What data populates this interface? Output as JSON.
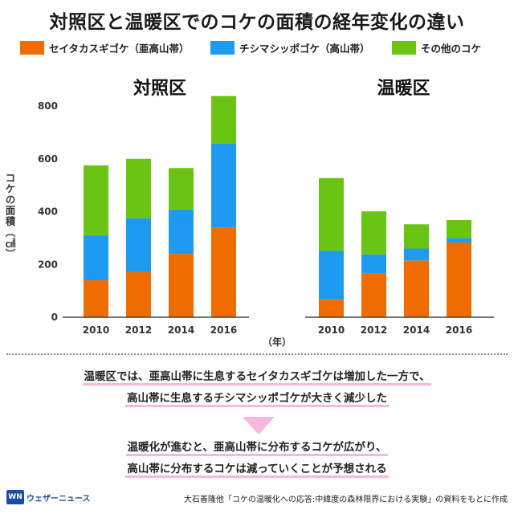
{
  "title": "対照区と温暖区でのコケの面積の経年変化の違い",
  "legend": [
    {
      "label": "セイタカスギゴケ（亜高山帯）",
      "color": "#ef6c00"
    },
    {
      "label": "チシマシッポゴケ（高山帯）",
      "color": "#1e9bf0"
    },
    {
      "label": "その他のコケ",
      "color": "#6ac414"
    }
  ],
  "chart_data": [
    {
      "type": "bar",
      "stacked": true,
      "title": "対照区",
      "categories": [
        "2010",
        "2012",
        "2014",
        "2016"
      ],
      "series": [
        {
          "name": "セイタカスギゴケ（亜高山帯）",
          "values": [
            140,
            172,
            240,
            340
          ]
        },
        {
          "name": "チシマシッポゴケ（高山帯）",
          "values": [
            170,
            203,
            168,
            318
          ]
        },
        {
          "name": "その他のコケ",
          "values": [
            265,
            225,
            157,
            180
          ]
        }
      ],
      "ylabel": "コケの面積（㎠）",
      "xlabel": "（年）",
      "ylim": [
        0,
        850
      ],
      "yticks": [
        0,
        200,
        400,
        600,
        800
      ],
      "grid": false
    },
    {
      "type": "bar",
      "stacked": true,
      "title": "温暖区",
      "categories": [
        "2010",
        "2012",
        "2014",
        "2016"
      ],
      "series": [
        {
          "name": "セイタカスギゴケ（亜高山帯）",
          "values": [
            68,
            165,
            215,
            283
          ]
        },
        {
          "name": "チシマシッポゴケ（高山帯）",
          "values": [
            183,
            73,
            45,
            17
          ]
        },
        {
          "name": "その他のコケ",
          "values": [
            276,
            163,
            92,
            68
          ]
        }
      ],
      "ylim": [
        0,
        850
      ],
      "grid": false
    }
  ],
  "summary": {
    "line1": "温暖区では、亜高山帯に生息するセイタカスギゴケは増加した一方で、",
    "line2": "高山帯に生息するチシマシッポゴケが大きく減少した",
    "line3": "温暖化が進むと、亜高山帯に分布するコケが広がり、",
    "line4": "高山帯に分布するコケは減っていくことが予想される"
  },
  "footer": {
    "logo_mark": "WN",
    "logo_text": "ウェザーニュース",
    "source": "大石善隆他「コケの温暖化への応答:中緯度の森林限界における実験」の資料をもとに作成"
  }
}
